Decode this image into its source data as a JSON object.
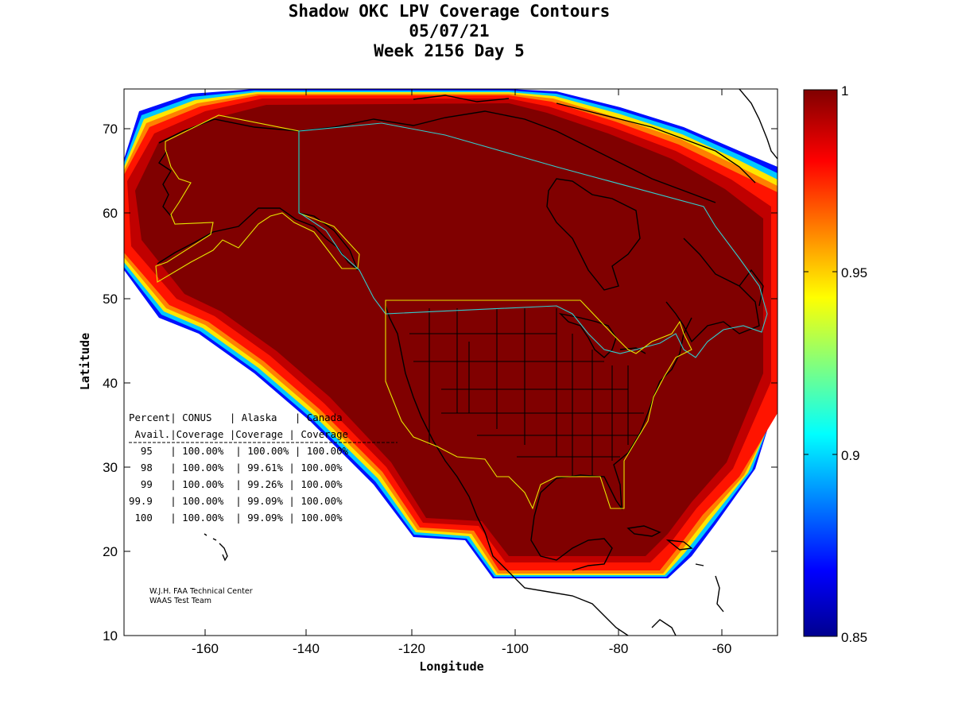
{
  "title": {
    "line1": "Shadow OKC LPV Coverage Contours",
    "line2": "05/07/21",
    "line3": "Week 2156 Day 5"
  },
  "axes": {
    "x_label": "Longitude",
    "y_label": "Latitude",
    "x_ticks": [
      "-160",
      "-140",
      "-120",
      "-100",
      "-80",
      "-60"
    ],
    "y_ticks": [
      "70",
      "60",
      "50",
      "40",
      "30",
      "20",
      "10"
    ]
  },
  "colorbar": {
    "ticks": [
      "1",
      "0.95",
      "0.9",
      "0.85"
    ],
    "range": [
      0.85,
      1
    ]
  },
  "stats_table": {
    "header1": "Percent| CONUS   | Alaska   | Canada",
    "header2": " Avail.|Coverage |Coverage | Coverage",
    "rows": [
      "  95   | 100.00%  | 100.00% | 100.00%",
      "  98   | 100.00%  | 99.61% | 100.00%",
      "  99   | 100.00%  | 99.26% | 100.00%",
      "99.9   | 100.00%  | 99.09% | 100.00%",
      " 100   | 100.00%  | 99.09% | 100.00%"
    ]
  },
  "credit": {
    "line1": "W.J.H. FAA Technical Center",
    "line2": "WAAS Test Team"
  },
  "colors": {
    "max_coverage": "#800000",
    "service_volume_alaska_conus": "#e6e600",
    "service_volume_canada": "#33cccc"
  }
}
